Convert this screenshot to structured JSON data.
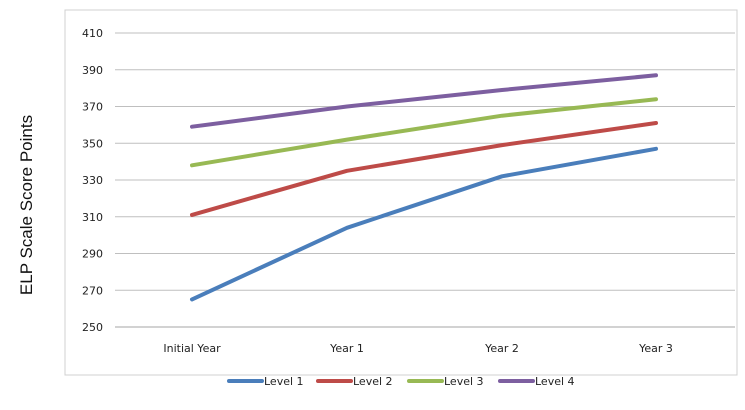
{
  "chart_data": {
    "type": "line",
    "title": "",
    "xlabel": "",
    "ylabel": "ELP Scale Score Points",
    "categories": [
      "Initial Year",
      "Year 1",
      "Year 2",
      "Year 3"
    ],
    "ylim": [
      250,
      410
    ],
    "yticks": [
      250,
      270,
      290,
      310,
      330,
      350,
      370,
      390,
      410
    ],
    "grid": true,
    "legend_position": "bottom",
    "series": [
      {
        "name": "Level 1",
        "color": "#4a7ebb",
        "values": [
          265,
          304,
          332,
          347
        ]
      },
      {
        "name": "Level 2",
        "color": "#be4b48",
        "values": [
          311,
          335,
          349,
          361
        ]
      },
      {
        "name": "Level 3",
        "color": "#98b954",
        "values": [
          338,
          352,
          365,
          374
        ]
      },
      {
        "name": "Level 4",
        "color": "#7d5fa0",
        "values": [
          359,
          370,
          379,
          387
        ]
      }
    ]
  }
}
